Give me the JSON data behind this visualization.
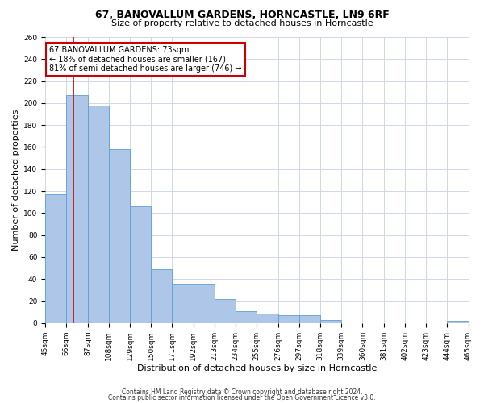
{
  "title1": "67, BANOVALLUM GARDENS, HORNCASTLE, LN9 6RF",
  "title2": "Size of property relative to detached houses in Horncastle",
  "xlabel": "Distribution of detached houses by size in Horncastle",
  "ylabel": "Number of detached properties",
  "footer1": "Contains HM Land Registry data © Crown copyright and database right 2024.",
  "footer2": "Contains public sector information licensed under the Open Government Licence v3.0.",
  "annotation_title": "67 BANOVALLUM GARDENS: 73sqm",
  "annotation_line1": "← 18% of detached houses are smaller (167)",
  "annotation_line2": "81% of semi-detached houses are larger (746) →",
  "bar_color": "#aec6e8",
  "bar_edge_color": "#5a9fd4",
  "vline_color": "#cc0000",
  "vline_x": 73,
  "annotation_box_color": "#ffffff",
  "annotation_box_edge": "#cc0000",
  "bin_edges": [
    45,
    66,
    87,
    108,
    129,
    150,
    171,
    192,
    213,
    234,
    255,
    276,
    297,
    318,
    339,
    360,
    381,
    402,
    423,
    444,
    465
  ],
  "bar_heights": [
    117,
    207,
    198,
    158,
    106,
    49,
    36,
    36,
    22,
    11,
    9,
    7,
    7,
    3,
    0,
    0,
    0,
    0,
    0,
    2
  ],
  "ylim": [
    0,
    260
  ],
  "yticks": [
    0,
    20,
    40,
    60,
    80,
    100,
    120,
    140,
    160,
    180,
    200,
    220,
    240,
    260
  ],
  "background_color": "#ffffff",
  "grid_color": "#d0d8e8",
  "title1_fontsize": 9,
  "title2_fontsize": 8,
  "xlabel_fontsize": 8,
  "ylabel_fontsize": 8,
  "tick_fontsize": 6.5,
  "footer_fontsize": 5.5,
  "annot_fontsize": 7
}
